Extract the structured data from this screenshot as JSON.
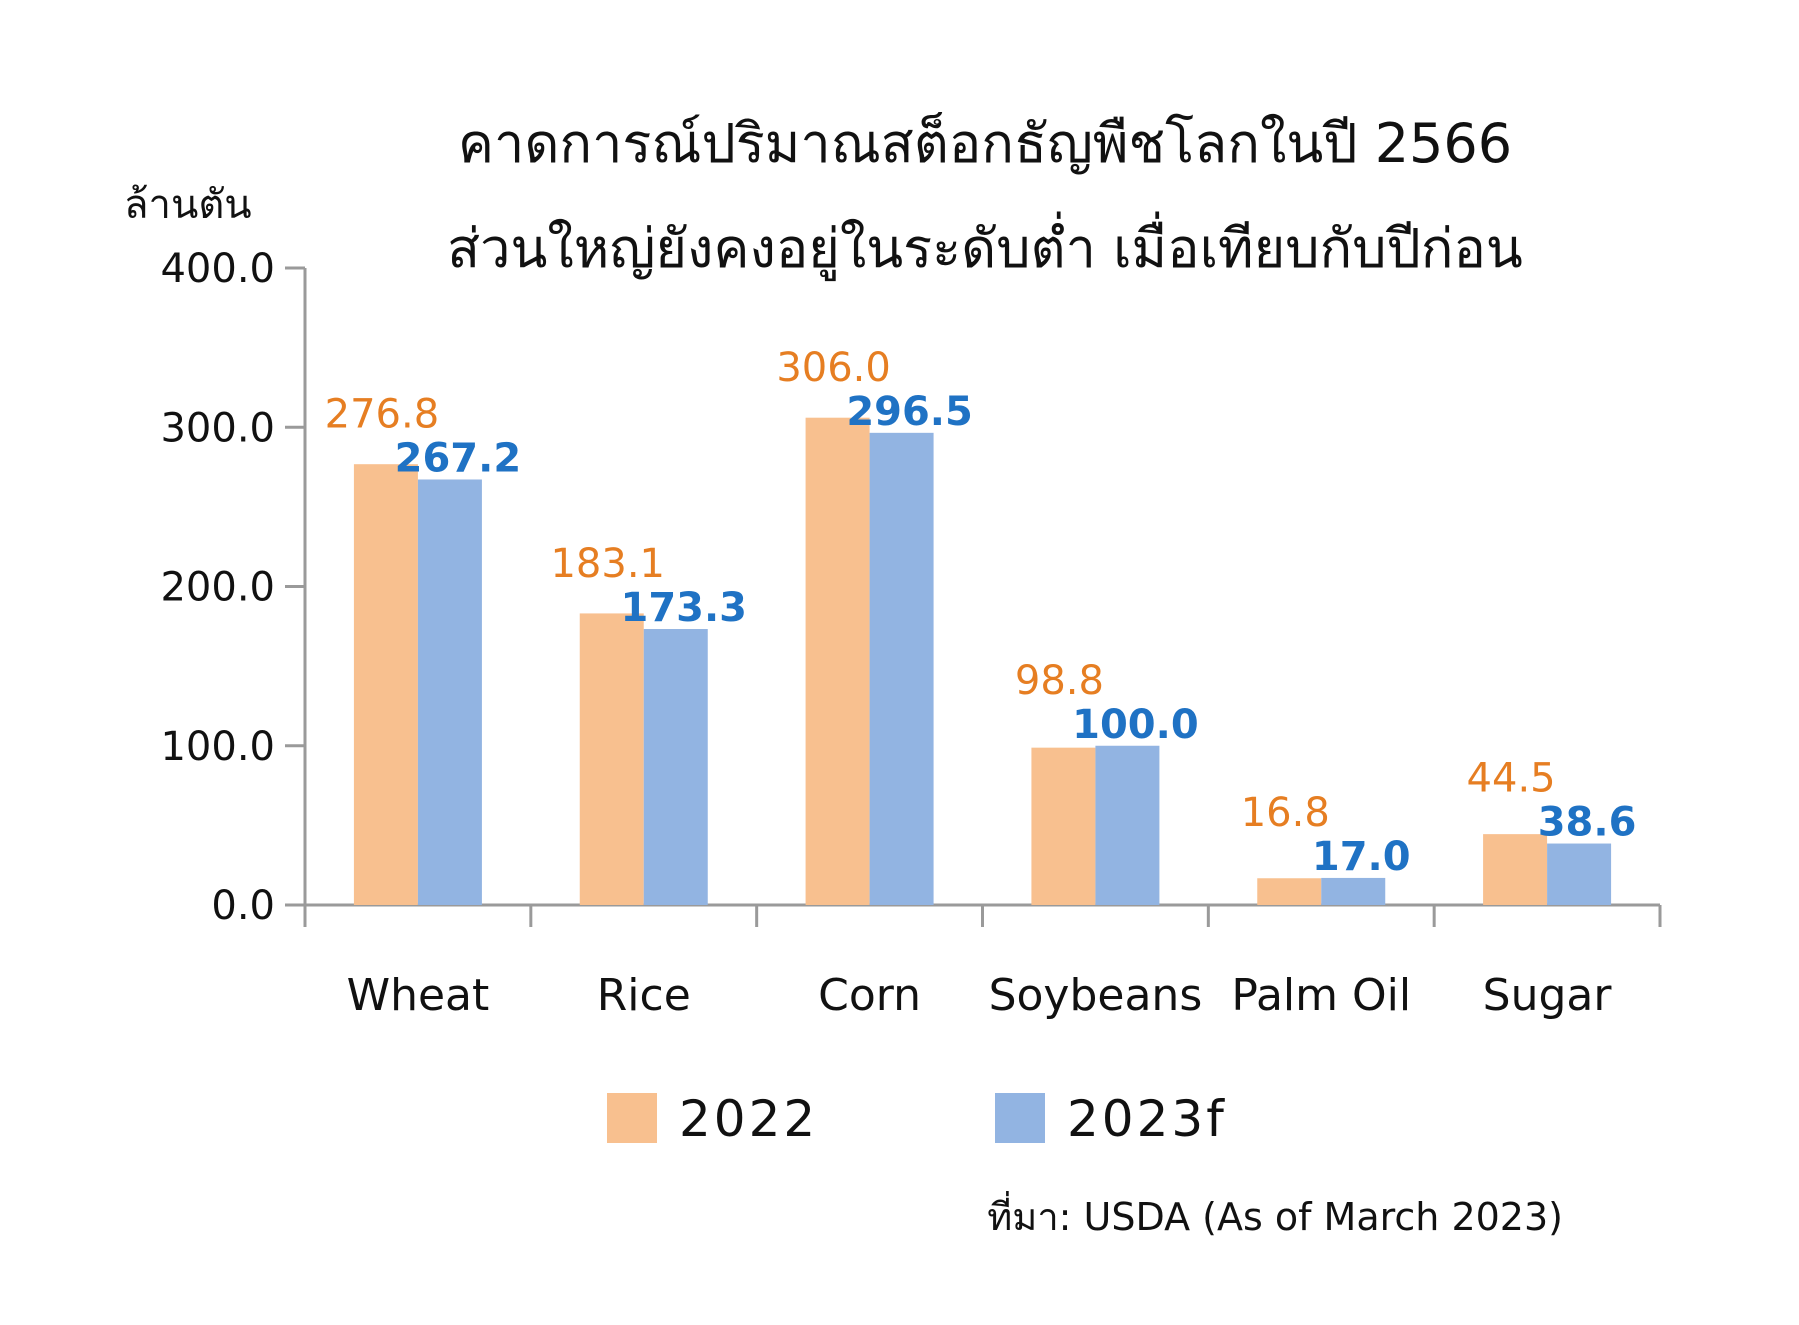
{
  "chart_data": {
    "type": "bar",
    "title": [
      "คาดการณ์ปริมาณสต็อกธัญพืชโลกในปี 2566",
      "ส่วนใหญ่ยังคงอยู่ในระดับต่ำ เมื่อเทียบกับปีก่อน"
    ],
    "ylabel": "ล้านตัน",
    "ylim": [
      0,
      400
    ],
    "yticks": [
      "0.0",
      "100.0",
      "200.0",
      "300.0",
      "400.0"
    ],
    "categories": [
      "Wheat",
      "Rice",
      "Corn",
      "Soybeans",
      "Palm Oil",
      "Sugar"
    ],
    "series": [
      {
        "name": "2022",
        "color": "#f8c08f",
        "values": [
          276.8,
          183.1,
          306.0,
          98.8,
          16.8,
          44.5
        ],
        "labels": [
          "276.8",
          "183.1",
          "306.0",
          "98.8",
          "16.8",
          "44.5"
        ]
      },
      {
        "name": "2023f",
        "color": "#92b4e2",
        "values": [
          267.2,
          173.3,
          296.5,
          100.0,
          17.0,
          38.6
        ],
        "labels": [
          "267.2",
          "173.3",
          "296.5",
          "100.0",
          "17.0",
          "38.6"
        ]
      }
    ],
    "legend_position": "bottom",
    "grid": false
  },
  "source": "ที่มา: USDA (As of March 2023)"
}
